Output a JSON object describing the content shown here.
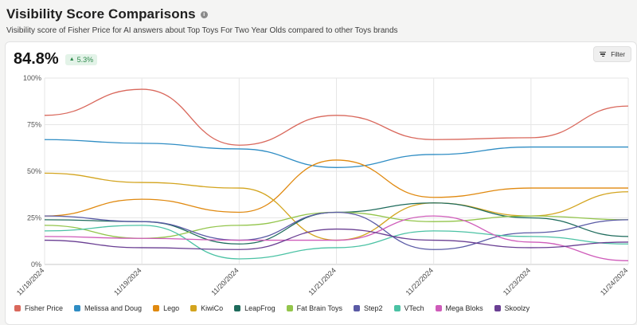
{
  "header": {
    "title": "Visibility Score Comparisons",
    "info_icon": "info-icon",
    "subtitle": "Visibility score of Fisher Price for AI answers about Top Toys For Two Year Olds compared to other Toys brands"
  },
  "metric": {
    "value": "84.8%",
    "delta": "5.3%",
    "delta_direction": "up",
    "delta_color": "#2f8a4d"
  },
  "filter": {
    "label": "Filter",
    "icon": "filter-icon"
  },
  "chart_data": {
    "type": "line",
    "x": [
      "11/18/2024",
      "11/19/2024",
      "11/20/2024",
      "11/21/2024",
      "11/22/2024",
      "11/23/2024",
      "11/24/2024"
    ],
    "yticks": [
      "0%",
      "25%",
      "50%",
      "75%",
      "100%"
    ],
    "ylim": [
      0,
      100
    ],
    "grid": true,
    "legend_position": "bottom",
    "series": [
      {
        "name": "Fisher Price",
        "color": "#d9685c",
        "values": [
          80,
          94,
          64,
          80,
          67,
          68,
          85
        ]
      },
      {
        "name": "Melissa and Doug",
        "color": "#2f8dc4",
        "values": [
          67,
          65,
          62,
          52,
          59,
          63,
          63
        ]
      },
      {
        "name": "Lego",
        "color": "#e0890f",
        "values": [
          26,
          35,
          28,
          56,
          36,
          41,
          41
        ]
      },
      {
        "name": "KiwiCo",
        "color": "#d3a41e",
        "values": [
          49,
          44,
          41,
          13,
          33,
          26,
          39
        ]
      },
      {
        "name": "LeapFrog",
        "color": "#1e6b5c",
        "values": [
          24,
          23,
          11,
          28,
          33,
          25,
          15
        ]
      },
      {
        "name": "Fat Brain Toys",
        "color": "#93c54b",
        "values": [
          21,
          14,
          21,
          28,
          23,
          26,
          24
        ]
      },
      {
        "name": "Step2",
        "color": "#5a5aa5",
        "values": [
          26,
          23,
          13,
          28,
          8,
          17,
          24
        ]
      },
      {
        "name": "VTech",
        "color": "#4bc2a4",
        "values": [
          18,
          21,
          3,
          9,
          18,
          15,
          11
        ]
      },
      {
        "name": "Mega Bloks",
        "color": "#cf5cba",
        "values": [
          15,
          14,
          13,
          13,
          26,
          12,
          2
        ]
      },
      {
        "name": "Skoolzy",
        "color": "#6a3f93",
        "values": [
          13,
          9,
          8,
          19,
          13,
          9,
          12
        ]
      }
    ]
  }
}
